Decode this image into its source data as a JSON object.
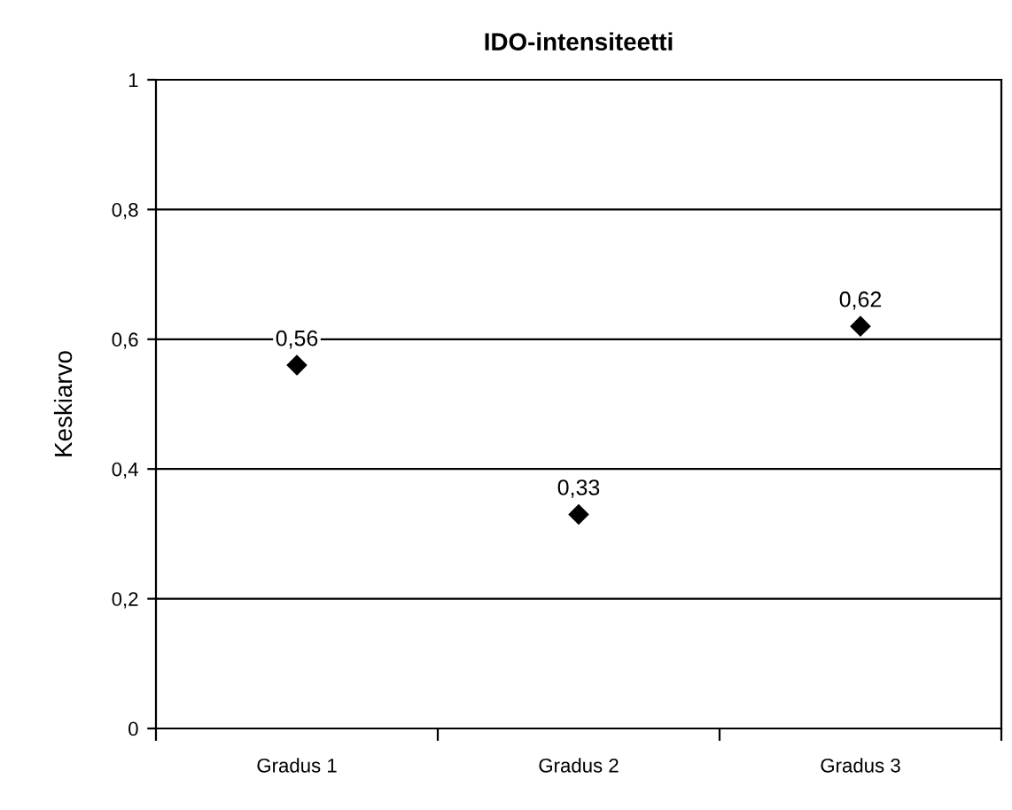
{
  "chart_data": {
    "type": "scatter",
    "title": "IDO-intensiteetti",
    "ylabel": "Keskiarvo",
    "categories": [
      "Gradus 1",
      "Gradus 2",
      "Gradus 3"
    ],
    "values": [
      0.56,
      0.33,
      0.62
    ],
    "value_labels": [
      "0,56",
      "0,33",
      "0,62"
    ],
    "color": "#000000",
    "marker": "diamond",
    "ylim": [
      0,
      1
    ],
    "yticks": [
      {
        "value": 0,
        "label": "0"
      },
      {
        "value": 0.2,
        "label": "0,2"
      },
      {
        "value": 0.4,
        "label": "0,4"
      },
      {
        "value": 0.6,
        "label": "0,6"
      },
      {
        "value": 0.8,
        "label": "0,8"
      },
      {
        "value": 1,
        "label": "1"
      }
    ],
    "grid": "y",
    "legend": false
  }
}
